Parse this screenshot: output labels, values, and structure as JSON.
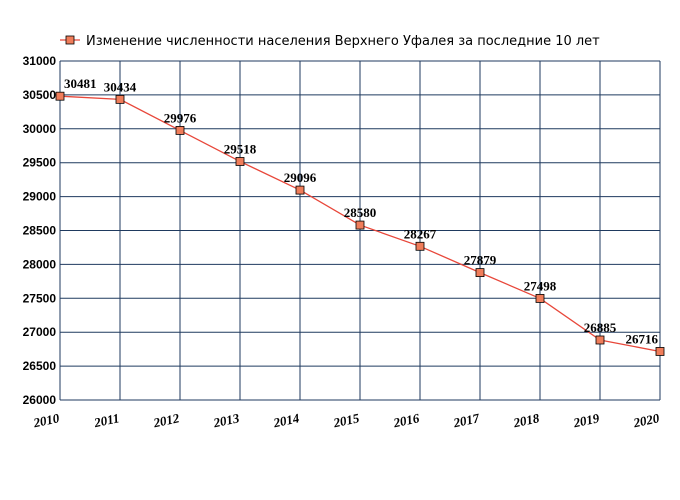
{
  "chart_data": {
    "type": "line",
    "title": "",
    "xlabel": "",
    "ylabel": "",
    "ylim": [
      26000,
      31000
    ],
    "yticks": [
      26000,
      26500,
      27000,
      27500,
      28000,
      28500,
      29000,
      29500,
      30000,
      30500,
      31000
    ],
    "x": [
      2010,
      2011,
      2012,
      2013,
      2014,
      2015,
      2016,
      2017,
      2018,
      2019,
      2020
    ],
    "grid": true,
    "legend": "top",
    "series": [
      {
        "name": "Изменение численности населения Верхнего Уфалея за последние 10 лет",
        "values": [
          30481,
          30434,
          29976,
          29518,
          29096,
          28580,
          28267,
          27879,
          27498,
          26885,
          26716
        ],
        "line_color": "#e8473a",
        "marker_color": "#f07d5a"
      }
    ],
    "grid_color": "#1f3a5f"
  }
}
